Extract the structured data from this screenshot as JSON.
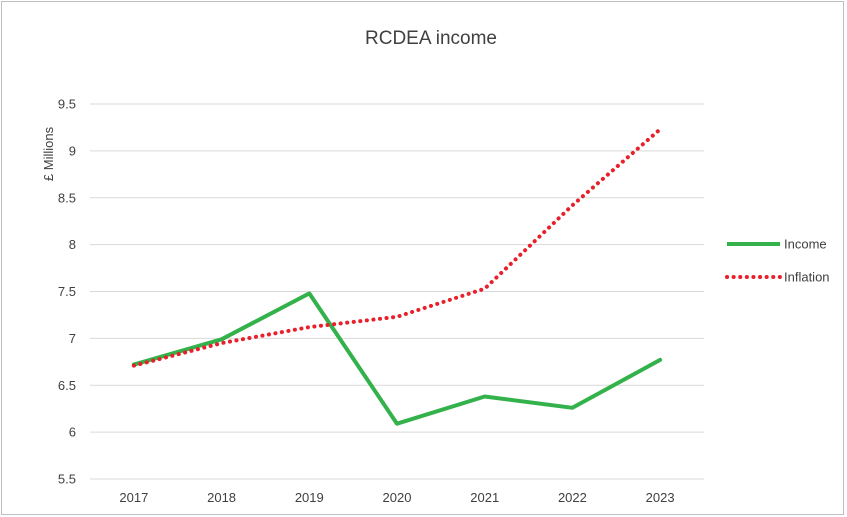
{
  "chart_data": {
    "type": "line",
    "title": "RCDEA income",
    "xlabel": "",
    "ylabel": "£ Millions",
    "categories": [
      "2017",
      "2018",
      "2019",
      "2020",
      "2021",
      "2022",
      "2023"
    ],
    "ylim": [
      5.5,
      9.5
    ],
    "yticks": [
      "5.5",
      "6",
      "6.5",
      "7",
      "7.5",
      "8",
      "8.5",
      "9",
      "9.5"
    ],
    "grid": true,
    "legend_position": "right",
    "series": [
      {
        "name": "Income",
        "values": [
          6.72,
          6.99,
          7.48,
          6.09,
          6.38,
          6.26,
          6.77
        ],
        "color": "#33b14a",
        "style": "solid"
      },
      {
        "name": "Inflation",
        "values": [
          6.71,
          6.95,
          7.12,
          7.23,
          7.53,
          8.42,
          9.23
        ],
        "color": "#e8202a",
        "style": "dotted"
      }
    ]
  }
}
